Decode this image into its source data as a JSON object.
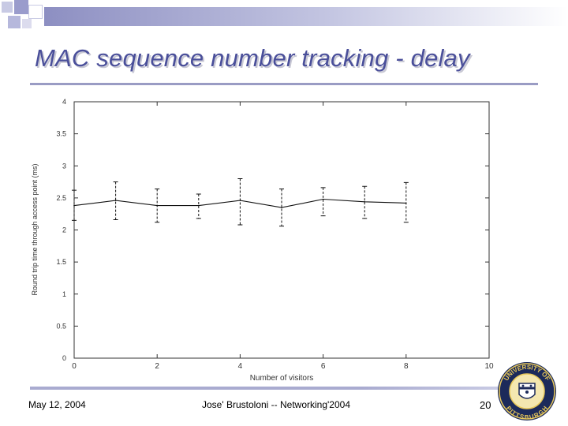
{
  "slide": {
    "title": "MAC sequence number tracking - delay",
    "footer_date": "May 12, 2004",
    "footer_center": "Jose' Brustoloni -- Networking'2004",
    "page_number": "20",
    "logo_text": "UNIVERSITY OF PITTSBURGH",
    "accent_color": "#4a4f9a",
    "bar_color": "#a9abd0"
  },
  "chart_data": {
    "type": "line",
    "title": "",
    "xlabel": "Number of visitors",
    "ylabel": "Round trip time through access point (ms)",
    "xlim": [
      0,
      10
    ],
    "ylim": [
      0,
      4
    ],
    "x_ticks": [
      "0",
      "2",
      "4",
      "6",
      "8",
      "10"
    ],
    "y_ticks": [
      "0",
      "0.5",
      "1",
      "1.5",
      "2",
      "2.5",
      "3",
      "3.5",
      "4"
    ],
    "grid": false,
    "series": [
      {
        "x": [
          0,
          1,
          2,
          3,
          4,
          5,
          6,
          7,
          8
        ],
        "y": [
          2.38,
          2.46,
          2.38,
          2.38,
          2.46,
          2.35,
          2.48,
          2.44,
          2.42
        ],
        "y_low": [
          2.15,
          2.16,
          2.12,
          2.18,
          2.08,
          2.06,
          2.22,
          2.18,
          2.12
        ],
        "y_high": [
          2.62,
          2.75,
          2.64,
          2.56,
          2.8,
          2.64,
          2.66,
          2.68,
          2.74
        ]
      }
    ]
  }
}
